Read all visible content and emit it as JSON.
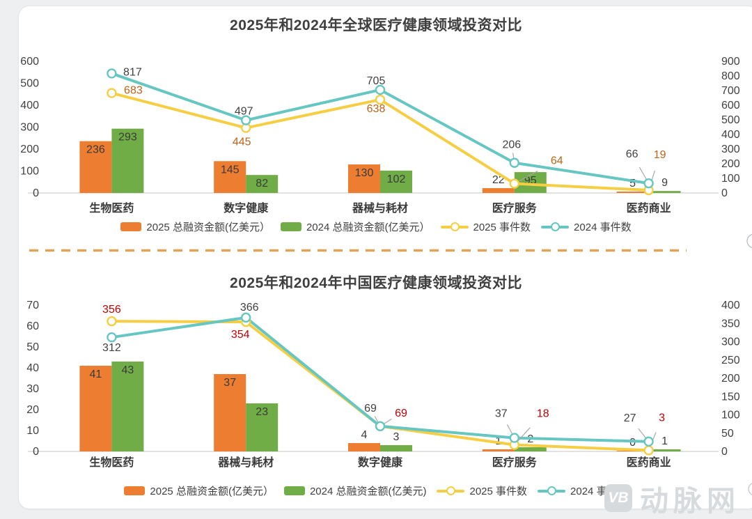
{
  "watermark": {
    "icon_text": "VB",
    "name": "动脉网"
  },
  "chart_data": [
    {
      "type": "bar+line",
      "title": "2025年和2024年全球医疗健康领域投资对比",
      "categories": [
        "生物医药",
        "数字健康",
        "器械与耗材",
        "医疗服务",
        "医药商业"
      ],
      "bar_series": [
        {
          "name": "2025 总融资金额(亿美元）",
          "color": "#ED7D31",
          "axis": "left",
          "values": [
            236,
            145,
            130,
            22,
            5
          ]
        },
        {
          "name": "2024 总融资金额(亿美元）",
          "color": "#70AD47",
          "axis": "left",
          "values": [
            293,
            82,
            102,
            95,
            9
          ]
        }
      ],
      "line_series": [
        {
          "name": "2025 事件数",
          "color": "#F5CE44",
          "label_color": "#BE6317",
          "axis": "right",
          "values": [
            683,
            445,
            638,
            64,
            19
          ]
        },
        {
          "name": "2024 事件数",
          "color": "#66C6C1",
          "label_color": "#404040",
          "axis": "right",
          "values": [
            817,
            497,
            705,
            206,
            66
          ]
        }
      ],
      "left_axis": {
        "min": 0,
        "max": 600,
        "step": 100
      },
      "right_axis": {
        "min": 0,
        "max": 900,
        "step": 100
      },
      "legend_position": "bottom",
      "grid": false
    },
    {
      "type": "bar+line",
      "title": "2025年和2024年中国医疗健康领域投资对比",
      "categories": [
        "生物医药",
        "器械与耗材",
        "数字健康",
        "医疗服务",
        "医药商业"
      ],
      "bar_series": [
        {
          "name": "2025 总融资金额(亿美元）",
          "color": "#ED7D31",
          "axis": "left",
          "values": [
            41,
            37,
            4,
            1,
            0
          ]
        },
        {
          "name": "2024 总融资金额(亿美元)",
          "color": "#70AD47",
          "axis": "left",
          "values": [
            43,
            23,
            3,
            2,
            1
          ]
        }
      ],
      "line_series": [
        {
          "name": "2025 事件数",
          "color": "#F5CE44",
          "label_color": "#C00000",
          "axis": "right",
          "values": [
            356,
            354,
            69,
            18,
            3
          ]
        },
        {
          "name": "2024 事件数",
          "color": "#66C6C1",
          "label_color": "#404040",
          "axis": "right",
          "values": [
            312,
            366,
            69,
            37,
            27
          ]
        }
      ],
      "left_axis": {
        "min": 0,
        "max": 70,
        "step": 10
      },
      "right_axis": {
        "min": 0,
        "max": 400,
        "step": 50
      },
      "legend_position": "bottom",
      "grid": false
    }
  ],
  "divider": {
    "color": "#DFA457",
    "style": "dashed"
  }
}
